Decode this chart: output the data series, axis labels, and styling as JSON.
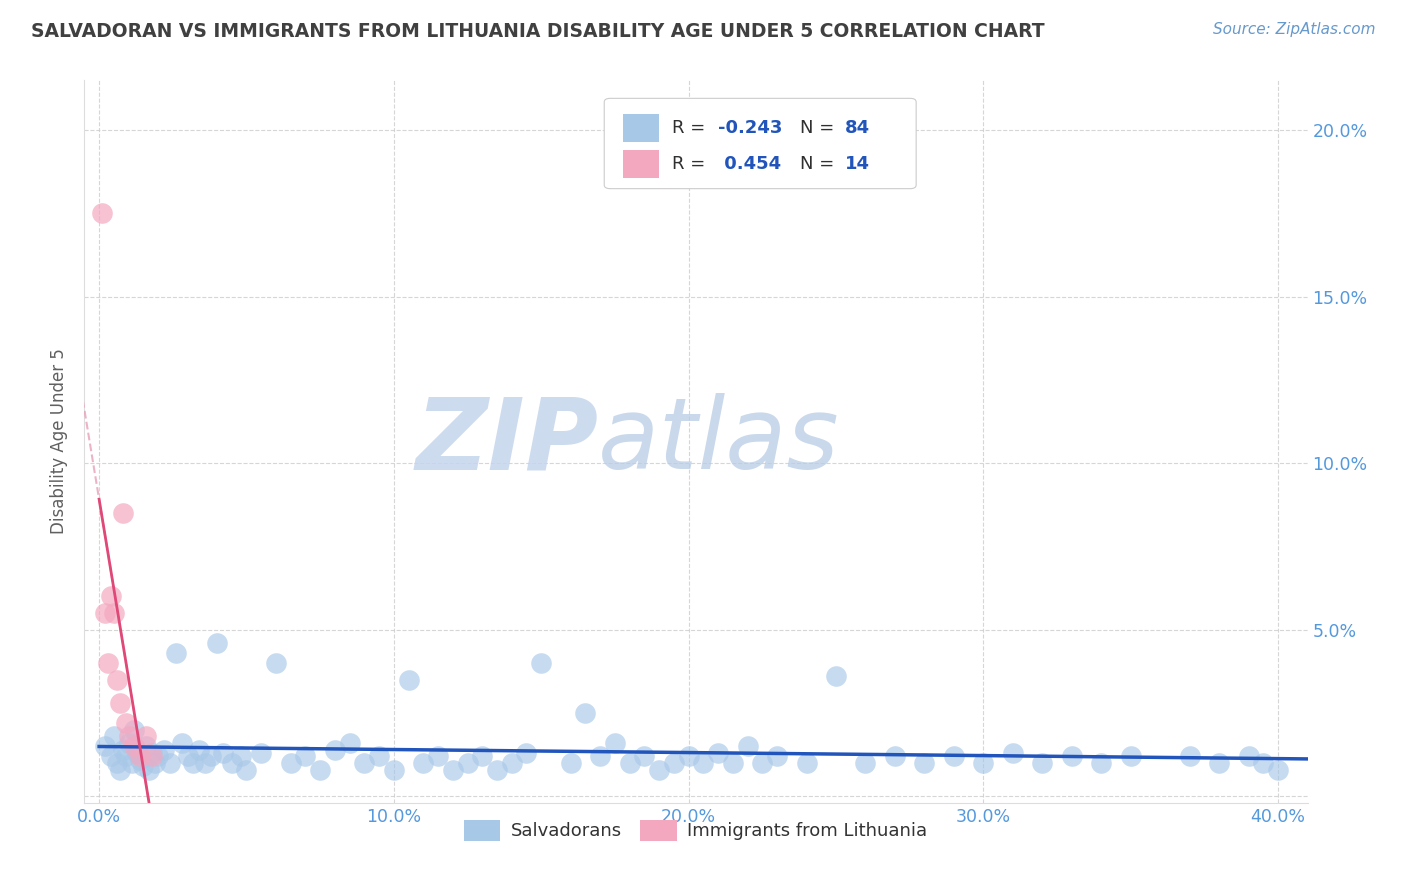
{
  "title": "SALVADORAN VS IMMIGRANTS FROM LITHUANIA DISABILITY AGE UNDER 5 CORRELATION CHART",
  "source": "Source: ZipAtlas.com",
  "ylabel": "Disability Age Under 5",
  "xlim": [
    -0.005,
    0.41
  ],
  "ylim": [
    -0.002,
    0.215
  ],
  "xticks": [
    0.0,
    0.1,
    0.2,
    0.3,
    0.4
  ],
  "xtick_labels": [
    "0.0%",
    "10.0%",
    "20.0%",
    "30.0%",
    "40.0%"
  ],
  "yticks": [
    0.0,
    0.05,
    0.1,
    0.15,
    0.2
  ],
  "ytick_labels": [
    "",
    "5.0%",
    "10.0%",
    "15.0%",
    "20.0%"
  ],
  "blue_color": "#a8c8e8",
  "pink_color": "#f4a8c0",
  "blue_line_color": "#2255bb",
  "pink_line_color": "#e04878",
  "pink_dash_color": "#e8a0b8",
  "background_color": "#ffffff",
  "grid_color": "#cccccc",
  "title_color": "#404040",
  "axis_label_color": "#5599dd",
  "ylabel_color": "#606060",
  "watermark_zip_color": "#c8d8f0",
  "watermark_atlas_color": "#c8d8ee",
  "blue_scatter_x": [
    0.002,
    0.004,
    0.005,
    0.006,
    0.007,
    0.008,
    0.009,
    0.01,
    0.011,
    0.012,
    0.013,
    0.014,
    0.015,
    0.016,
    0.017,
    0.018,
    0.019,
    0.02,
    0.022,
    0.024,
    0.026,
    0.028,
    0.03,
    0.032,
    0.034,
    0.036,
    0.038,
    0.04,
    0.042,
    0.045,
    0.048,
    0.05,
    0.055,
    0.06,
    0.065,
    0.07,
    0.075,
    0.08,
    0.085,
    0.09,
    0.095,
    0.1,
    0.105,
    0.11,
    0.115,
    0.12,
    0.125,
    0.13,
    0.135,
    0.14,
    0.145,
    0.15,
    0.16,
    0.165,
    0.17,
    0.175,
    0.18,
    0.185,
    0.19,
    0.195,
    0.2,
    0.205,
    0.21,
    0.215,
    0.22,
    0.225,
    0.23,
    0.24,
    0.25,
    0.26,
    0.27,
    0.28,
    0.29,
    0.3,
    0.31,
    0.32,
    0.33,
    0.34,
    0.35,
    0.37,
    0.38,
    0.39,
    0.395,
    0.4
  ],
  "blue_scatter_y": [
    0.015,
    0.012,
    0.018,
    0.01,
    0.008,
    0.014,
    0.012,
    0.016,
    0.01,
    0.02,
    0.013,
    0.011,
    0.009,
    0.015,
    0.008,
    0.013,
    0.01,
    0.012,
    0.014,
    0.01,
    0.043,
    0.016,
    0.012,
    0.01,
    0.014,
    0.01,
    0.012,
    0.046,
    0.013,
    0.01,
    0.012,
    0.008,
    0.013,
    0.04,
    0.01,
    0.012,
    0.008,
    0.014,
    0.016,
    0.01,
    0.012,
    0.008,
    0.035,
    0.01,
    0.012,
    0.008,
    0.01,
    0.012,
    0.008,
    0.01,
    0.013,
    0.04,
    0.01,
    0.025,
    0.012,
    0.016,
    0.01,
    0.012,
    0.008,
    0.01,
    0.012,
    0.01,
    0.013,
    0.01,
    0.015,
    0.01,
    0.012,
    0.01,
    0.036,
    0.01,
    0.012,
    0.01,
    0.012,
    0.01,
    0.013,
    0.01,
    0.012,
    0.01,
    0.012,
    0.012,
    0.01,
    0.012,
    0.01,
    0.008
  ],
  "pink_scatter_x": [
    0.001,
    0.002,
    0.003,
    0.004,
    0.005,
    0.006,
    0.007,
    0.008,
    0.009,
    0.01,
    0.012,
    0.014,
    0.016,
    0.018
  ],
  "pink_scatter_y": [
    0.175,
    0.055,
    0.04,
    0.06,
    0.055,
    0.035,
    0.028,
    0.085,
    0.022,
    0.018,
    0.015,
    0.012,
    0.018,
    0.012
  ]
}
